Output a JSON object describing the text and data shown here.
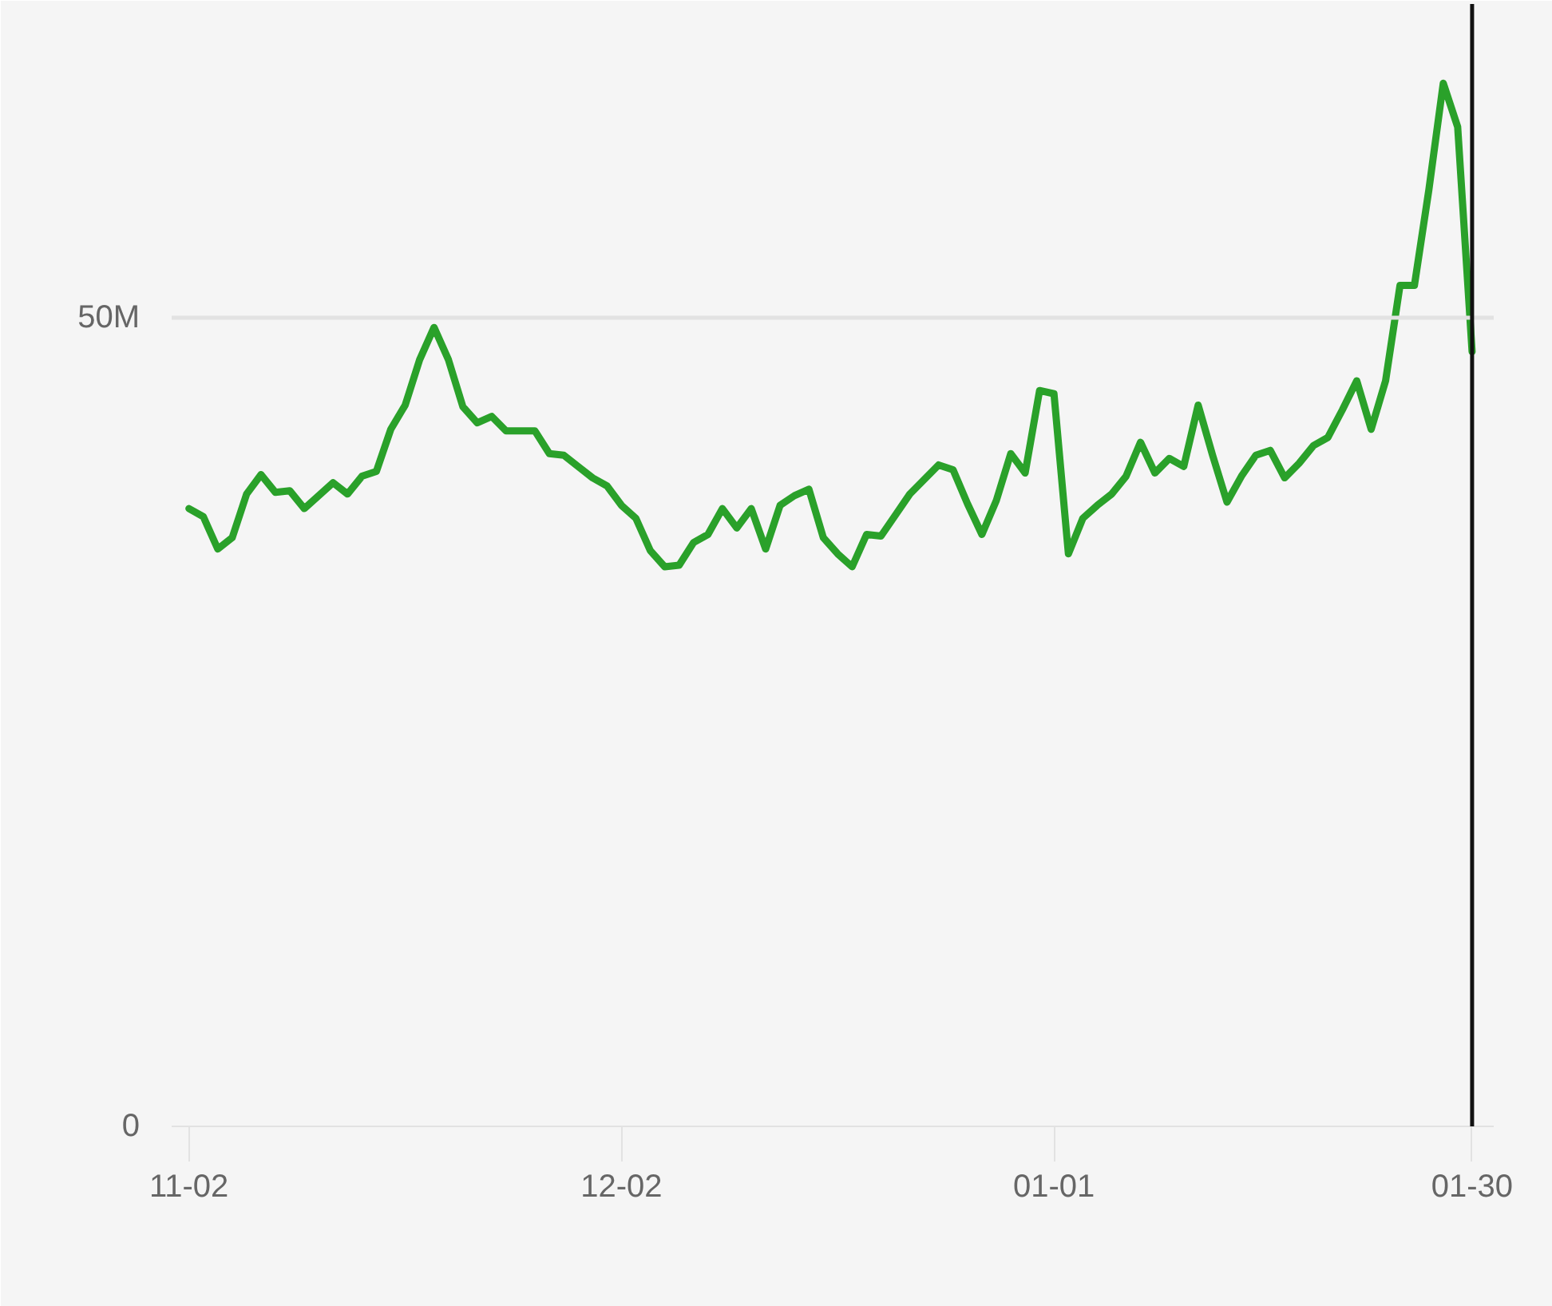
{
  "chart_data": {
    "type": "line",
    "categories": [
      "11-02",
      null,
      null,
      null,
      null,
      null,
      null,
      null,
      null,
      null,
      null,
      null,
      null,
      null,
      null,
      null,
      null,
      null,
      null,
      null,
      null,
      null,
      null,
      null,
      null,
      null,
      null,
      null,
      null,
      null,
      "12-02",
      null,
      null,
      null,
      null,
      null,
      null,
      null,
      null,
      null,
      null,
      null,
      null,
      null,
      null,
      null,
      null,
      null,
      null,
      null,
      null,
      null,
      null,
      null,
      null,
      null,
      null,
      null,
      null,
      null,
      "01-01",
      null,
      null,
      null,
      null,
      null,
      null,
      null,
      null,
      null,
      null,
      null,
      null,
      null,
      null,
      null,
      null,
      null,
      null,
      null,
      null,
      null,
      null,
      null,
      null,
      null,
      null,
      null,
      null,
      "01-30"
    ],
    "series": [
      {
        "color": "#2aa12a",
        "values": [
          38.2,
          37.7,
          35.7,
          36.4,
          39.1,
          40.3,
          39.2,
          39.3,
          38.2,
          39.0,
          39.8,
          39.1,
          40.2,
          40.5,
          43.1,
          44.6,
          47.4,
          49.4,
          47.4,
          44.5,
          43.5,
          43.9,
          43.0,
          43.0,
          43.0,
          41.6,
          41.5,
          40.8,
          40.1,
          39.6,
          38.4,
          37.6,
          35.6,
          34.6,
          34.7,
          36.1,
          36.6,
          38.2,
          37.0,
          38.2,
          35.7,
          38.4,
          39.0,
          39.4,
          36.4,
          35.4,
          34.6,
          36.6,
          36.5,
          37.8,
          39.1,
          40.0,
          40.9,
          40.6,
          38.5,
          36.6,
          38.7,
          41.6,
          40.4,
          45.5,
          45.3,
          35.4,
          37.6,
          38.4,
          39.1,
          40.2,
          42.3,
          40.4,
          41.3,
          40.8,
          44.6,
          41.5,
          38.6,
          40.2,
          41.5,
          41.8,
          40.1,
          41.0,
          42.1,
          42.6,
          44.3,
          46.1,
          43.1,
          46.1,
          52.0,
          52.0,
          57.9,
          64.5,
          61.8,
          47.9
        ]
      }
    ],
    "ylim": [
      0,
      69.4
    ],
    "yticks": [
      0,
      {
        "value": 50,
        "label": "50M"
      }
    ],
    "line_style": "solid",
    "ref_lines": [
      {
        "axis": "y",
        "value": 50,
        "label": null,
        "color": "#e2e2e2"
      },
      {
        "axis": "x",
        "value": "01-30",
        "label": null,
        "color": "#111111"
      }
    ]
  }
}
